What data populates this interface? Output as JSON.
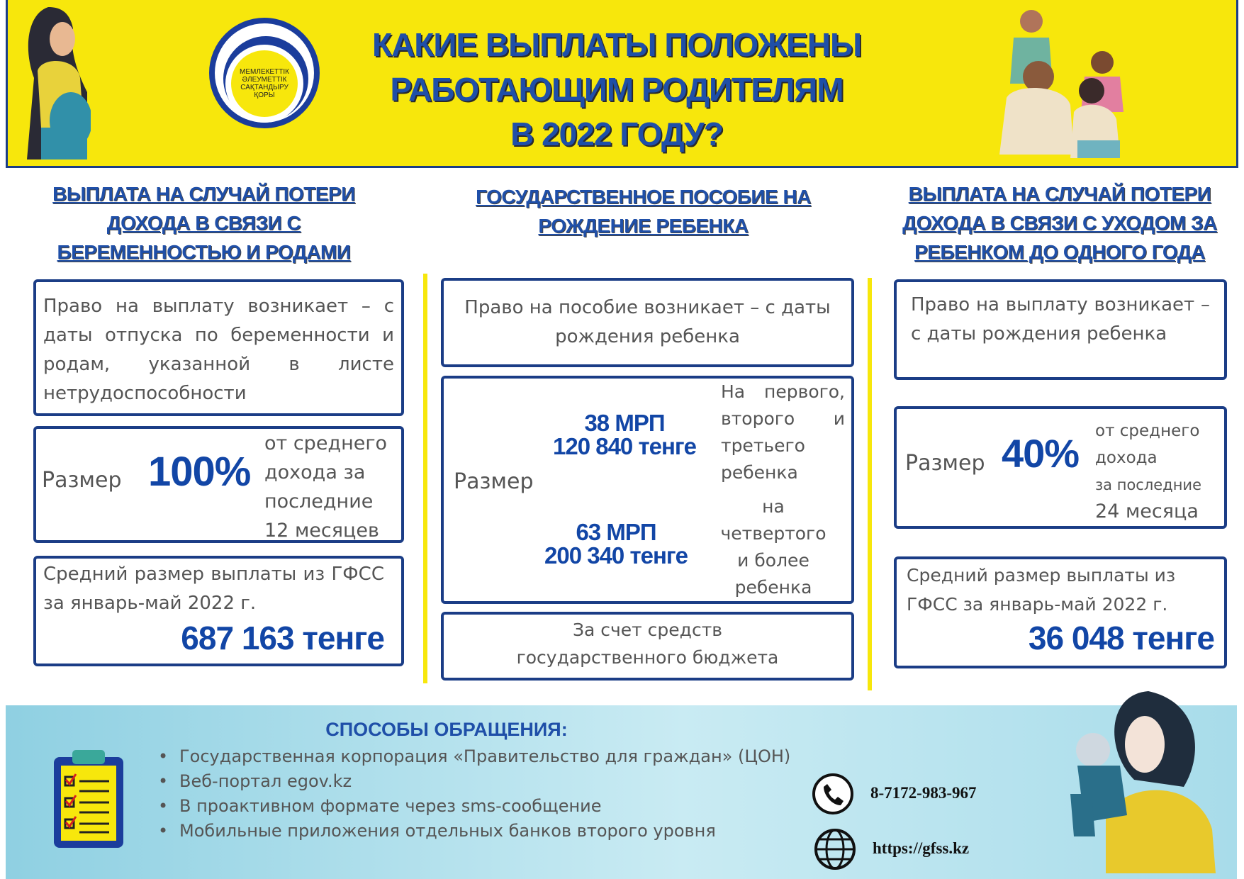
{
  "header": {
    "title_lines": [
      "КАКИЕ ВЫПЛАТЫ ПОЛОЖЕНЫ",
      "РАБОТАЮЩИМ РОДИТЕЛЯМ",
      "В 2022 ГОДУ?"
    ],
    "logo_text": [
      "МЕМЛЕКЕТТІК",
      "ӘЛЕУМЕТТІК",
      "САҚТАНДЫРУ",
      "ҚОРЫ"
    ],
    "colors": {
      "yellow": "#f7e70c",
      "blue": "#1f4fa8",
      "border": "#1b3d86"
    }
  },
  "columns": [
    {
      "heading": [
        "ВЫПЛАТА НА СЛУЧАЙ ПОТЕРИ",
        "ДОХОДА В СВЯЗИ С",
        "БЕРЕМЕННОСТЬЮ И РОДАМИ"
      ],
      "right_text": "Право на выплату возникает – с даты отпуска по беременности и родам, указанной в листе нетрудоспособности",
      "size_label": "Размер",
      "size_value": "100%",
      "size_note": [
        "от среднего",
        "дохода за",
        "последние",
        "12 месяцев"
      ],
      "avg_text": "Средний размер выплаты из ГФСС за январь-май 2022 г.",
      "avg_value": "687 163 тенге"
    },
    {
      "heading": [
        "ГОСУДАРСТВЕННОЕ ПОСОБИЕ НА",
        "РОЖДЕНИЕ РЕБЕНКА"
      ],
      "right_text": "Право на пособие возникает – с даты рождения ребенка",
      "size_label": "Размер",
      "tiers": [
        {
          "mrp": "38 МРП",
          "amount": "120 840 тенге",
          "note": "На первого, второго и третьего ребенка"
        },
        {
          "mrp": "63 МРП",
          "amount": "200 340 тенге",
          "note": "на четвертого и более ребенка"
        }
      ],
      "funding": "За счет средств государственного бюджета"
    },
    {
      "heading": [
        "ВЫПЛАТА НА СЛУЧАЙ ПОТЕРИ",
        "ДОХОДА В СВЯЗИ С УХОДОМ ЗА",
        "РЕБЕНКОМ ДО ОДНОГО ГОДА"
      ],
      "right_text": "Право на выплату возникает – с даты рождения ребенка",
      "size_label": "Размер",
      "size_value": "40%",
      "size_note": [
        "от среднего",
        "дохода",
        "за последние",
        "24 месяца"
      ],
      "avg_text": "Средний размер выплаты из ГФСС за январь-май 2022 г.",
      "avg_value": "36 048 тенге"
    }
  ],
  "contact": {
    "title": "СПОСОБЫ ОБРАЩЕНИЯ:",
    "items": [
      "Государственная корпорация «Правительство для граждан» (ЦОН)",
      "Веб-портал egov.kz",
      "В проактивном формате через sms-сообщение",
      "Мобильные приложения отдельных банков второго уровня"
    ],
    "phone": "8-7172-983-967",
    "website": "https://gfss.kz",
    "icons": [
      "clipboard-checklist-icon",
      "phone-icon",
      "globe-www-icon"
    ]
  }
}
